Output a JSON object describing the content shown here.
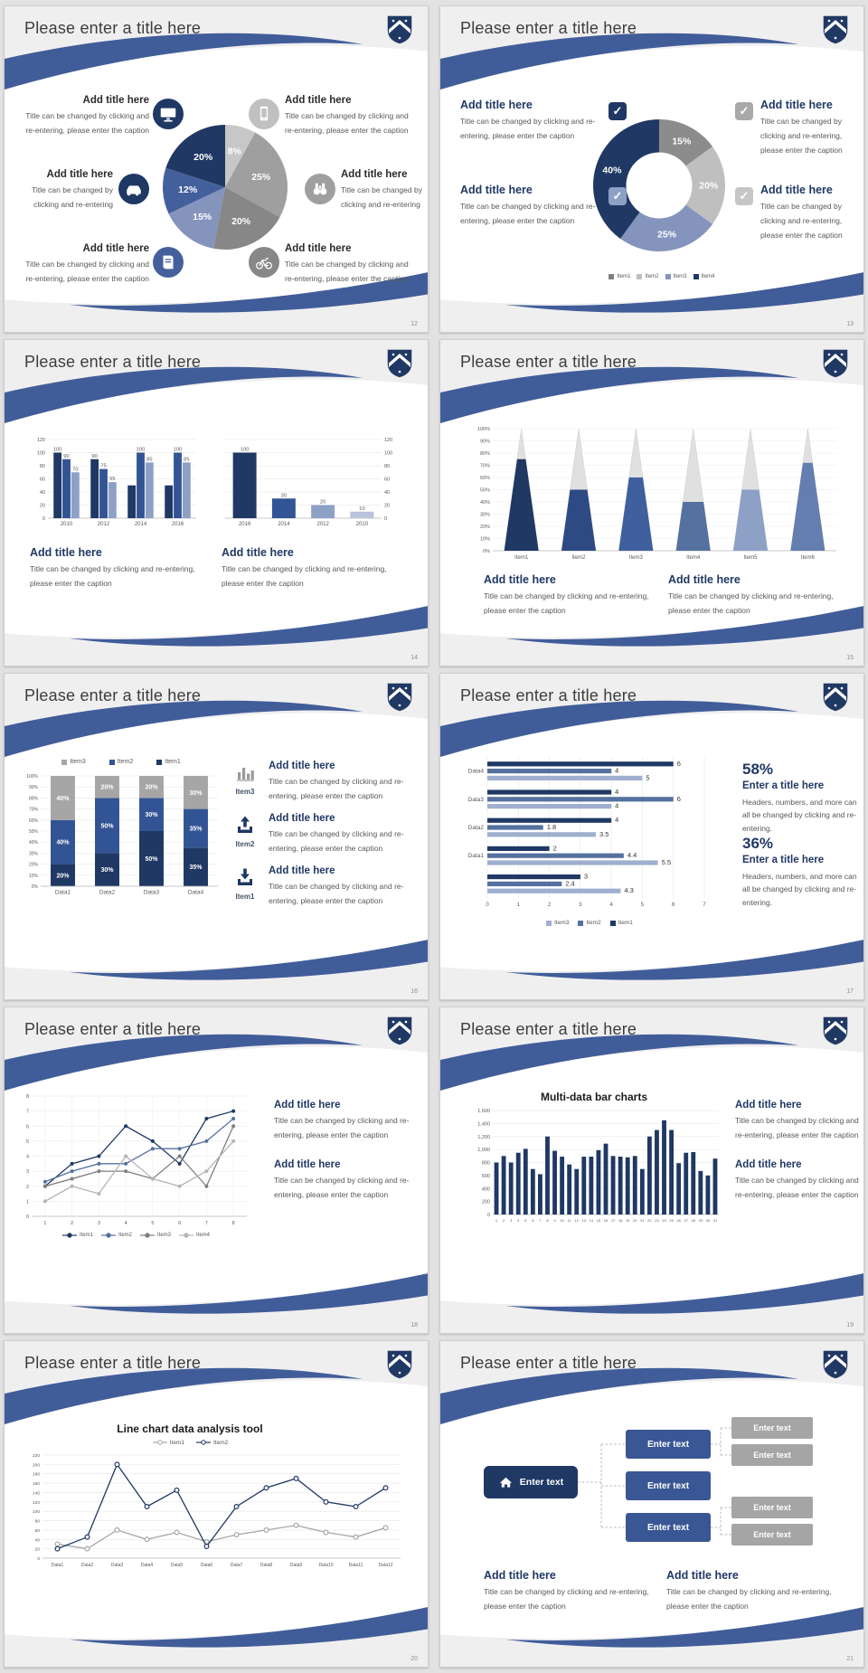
{
  "page": {
    "background": "#e2e2e2"
  },
  "theme": {
    "brand_navy": "#203864",
    "ribbon_blue": "#415d99",
    "header_gray": "#f0eff0"
  },
  "slides": [
    {
      "page_number": "12",
      "title": "Please enter a title here",
      "chart_data": {
        "type": "pie",
        "values": [
          8,
          25,
          20,
          15,
          12,
          20
        ],
        "labels": [
          "8%",
          "25%",
          "20%",
          "15%",
          "12%",
          "20%"
        ],
        "colors": [
          "#c7c7c7",
          "#9f9f9f",
          "#878787",
          "#8494bd",
          "#44609c",
          "#203864"
        ]
      },
      "blocks": [
        {
          "heading": "Add title here",
          "caption": "Title can be changed by clicking and re-entering, please enter the caption",
          "icon": "monitor-icon"
        },
        {
          "heading": "Add title here",
          "caption": "Title can be changed by clicking and re-entering, please enter the caption",
          "icon": "smartphone-icon"
        },
        {
          "heading": "Add title here",
          "caption": "Title can be changed by clicking and re-entering",
          "icon": "car-icon"
        },
        {
          "heading": "Add title here",
          "caption": "Title can be changed by clicking and re-entering",
          "icon": "binoculars-icon"
        },
        {
          "heading": "Add title here",
          "caption": "Title can be changed by clicking and re-entering, please enter the caption",
          "icon": "book-icon"
        },
        {
          "heading": "Add title here",
          "caption": "Title can be changed by clicking and re-entering, please enter the caption",
          "icon": "bicycle-icon"
        }
      ]
    },
    {
      "page_number": "13",
      "title": "Please enter a title here",
      "chart_data": {
        "type": "donut",
        "inner": 0.5,
        "values": [
          15,
          20,
          25,
          40
        ],
        "labels": [
          "15%",
          "20%",
          "25%",
          "40%"
        ],
        "colors": [
          "#8c8c8c",
          "#bfbfbf",
          "#8494bd",
          "#203864"
        ],
        "legend_style": "square",
        "legend": [
          {
            "label": "Item1",
            "color": "#7f7f7f"
          },
          {
            "label": "Item2",
            "color": "#bfbfbf"
          },
          {
            "label": "Item3",
            "color": "#8494bd"
          },
          {
            "label": "Item4",
            "color": "#203864"
          }
        ]
      },
      "blocks": [
        {
          "heading": "Add title here",
          "caption": "Title can be changed by clicking and re-entering, please enter the caption",
          "check_color": "#1f3864"
        },
        {
          "heading": "Add title here",
          "caption": "Title can be changed by clicking and re-entering, please enter the caption",
          "check_color": "#8da0c6"
        },
        {
          "heading": "Add title here",
          "caption": "Title can be changed by clicking and re-entering, please enter the caption",
          "check_color": "#a9a9a9"
        },
        {
          "heading": "Add title here",
          "caption": "Title can be changed by clicking and re-entering, please enter the caption",
          "check_color": "#c6c6c6"
        }
      ]
    },
    {
      "page_number": "14",
      "title": "Please enter a title here",
      "chart_data": [
        {
          "type": "bars",
          "axis": "left",
          "ylim": [
            0,
            120
          ],
          "ystep": 20,
          "categories": [
            "2010",
            "2012",
            "2014",
            "2016"
          ],
          "series": [
            {
              "color": "#1f3864",
              "values": [
                100,
                90,
                50,
                50
              ],
              "labels": [
                "100",
                "90",
                "",
                ""
              ]
            },
            {
              "color": "#335494",
              "values": [
                90,
                75,
                100,
                100
              ],
              "labels": [
                "90",
                "75",
                "100",
                "100"
              ]
            },
            {
              "color": "#8da0c6",
              "values": [
                70,
                55,
                85,
                85
              ],
              "labels": [
                "70",
                "55",
                "85",
                "85"
              ]
            }
          ]
        },
        {
          "type": "bars",
          "axis": "right",
          "ylim": [
            0,
            120
          ],
          "ystep": 20,
          "categories": [
            "2016",
            "2014",
            "2012",
            "2010"
          ],
          "series": [
            {
              "colors": [
                "#1f3864",
                "#335494",
                "#8da0c6",
                "#b9c3dc"
              ],
              "values": [
                100,
                30,
                20,
                10
              ],
              "labels": [
                "100",
                "30",
                "20",
                "10"
              ]
            }
          ]
        }
      ],
      "blocks": [
        {
          "heading": "Add title here",
          "caption": "Title can be changed by clicking and re-entering, please enter the caption"
        },
        {
          "heading": "Add title here",
          "caption": "Title can be changed by clicking and re-entering, please enter the caption"
        }
      ]
    },
    {
      "page_number": "15",
      "title": "Please enter a title here",
      "chart_data": {
        "type": "cone",
        "ylim": [
          0,
          100
        ],
        "ystep": 10,
        "categories": [
          "Item1",
          "Item2",
          "Item3",
          "Item4",
          "Item5",
          "Item6"
        ],
        "values": [
          75,
          50,
          60,
          40,
          50,
          72
        ],
        "colors": [
          "#1f3864",
          "#2d4a84",
          "#3f5f9e",
          "#54719f",
          "#8da0c6",
          "#647eb0"
        ]
      },
      "blocks": [
        {
          "heading": "Add title here",
          "caption": "Title can be changed by clicking and re-entering, please enter the caption"
        },
        {
          "heading": "Add title here",
          "caption": "Title can be changed by clicking and re-entering, please enter the caption"
        }
      ]
    },
    {
      "page_number": "16",
      "title": "Please enter a title here",
      "chart_data": {
        "type": "stacked",
        "ylim": [
          0,
          100
        ],
        "ystep": 10,
        "categories": [
          "Data1",
          "Data2",
          "Data3",
          "Data4"
        ],
        "series": [
          {
            "name": "Item1",
            "color": "#1f3864",
            "values": [
              20,
              30,
              50,
              35
            ]
          },
          {
            "name": "Item2",
            "color": "#335494",
            "values": [
              40,
              50,
              30,
              35
            ]
          },
          {
            "name": "Item3",
            "color": "#a6a6a6",
            "values": [
              40,
              20,
              20,
              30
            ]
          }
        ],
        "legend_style": "square",
        "legend": [
          {
            "label": "Item3",
            "color": "#a6a6a6"
          },
          {
            "label": "Item2",
            "color": "#335494"
          },
          {
            "label": "Item1",
            "color": "#1f3864"
          }
        ]
      },
      "rows": [
        {
          "item": "Item3",
          "icon": "bar-chart-icon",
          "heading": "Add title here",
          "caption": "Title can be changed by clicking and re-entering, please enter the caption"
        },
        {
          "item": "Item2",
          "icon": "upload-icon",
          "heading": "Add title here",
          "caption": "Title can be changed by clicking and re-entering, please enter the caption"
        },
        {
          "item": "Item1",
          "icon": "download-icon",
          "heading": "Add title here",
          "caption": "Title can be changed by clicking and re-entering, please enter the caption"
        }
      ]
    },
    {
      "page_number": "17",
      "title": "Please enter a title here",
      "chart_data": {
        "type": "hbar",
        "xlim": [
          0,
          7
        ],
        "xstep": 1,
        "colors": [
          "#1f3864",
          "#54719f",
          "#9fafd0"
        ],
        "groups": [
          {
            "label": "Data4",
            "values": [
              6,
              4,
              5
            ]
          },
          {
            "label": "Data3",
            "values": [
              4,
              6,
              4
            ]
          },
          {
            "label": "Data2",
            "values": [
              4,
              1.8,
              3.5
            ]
          },
          {
            "label": "Data1",
            "values": [
              2,
              4.4,
              5.5
            ]
          },
          {
            "label": "",
            "values": [
              3,
              2.4,
              4.3
            ]
          }
        ],
        "legend_style": "square",
        "legend": [
          {
            "label": "Item3",
            "color": "#9fafd0"
          },
          {
            "label": "Item2",
            "color": "#54719f"
          },
          {
            "label": "Item1",
            "color": "#1f3864"
          }
        ]
      },
      "stats": [
        {
          "percent": "58%",
          "title": "Enter a title here",
          "caption": "Headers, numbers, and more can all be changed by clicking and re-entering."
        },
        {
          "percent": "36%",
          "title": "Enter a title here",
          "caption": "Headers, numbers, and more can all be changed by clicking and re-entering."
        }
      ]
    },
    {
      "page_number": "18",
      "title": "Please enter a title here",
      "chart_data": {
        "type": "line",
        "ylim": [
          0,
          8
        ],
        "ystep": 1,
        "vgrid": true,
        "marker": "dot",
        "x": [
          "1",
          "2",
          "3",
          "4",
          "5",
          "6",
          "7",
          "8"
        ],
        "series": [
          {
            "name": "Item1",
            "color": "#1f3864",
            "values": [
              2,
              3.5,
              4,
              6,
              5,
              3.5,
              6.5,
              7
            ]
          },
          {
            "name": "Item2",
            "color": "#54719f",
            "values": [
              2.3,
              3,
              3.5,
              3.5,
              4.5,
              4.5,
              5,
              6.5
            ]
          },
          {
            "name": "Item3",
            "color": "#7f7f7f",
            "values": [
              2,
              2.5,
              3,
              3,
              2.5,
              4,
              2,
              6
            ]
          },
          {
            "name": "Item4",
            "color": "#b5b5b5",
            "values": [
              1,
              2,
              1.5,
              4,
              2.5,
              2,
              3,
              5
            ]
          }
        ],
        "legend_style": "line",
        "legend": [
          {
            "label": "Item1",
            "color": "#1f3864"
          },
          {
            "label": "Item2",
            "color": "#54719f"
          },
          {
            "label": "Item3",
            "color": "#7f7f7f"
          },
          {
            "label": "Item4",
            "color": "#b5b5b5"
          }
        ]
      },
      "blocks": [
        {
          "heading": "Add title here",
          "caption": "Title can be changed by clicking and re-entering, please enter the caption"
        },
        {
          "heading": "Add title here",
          "caption": "Title can be changed by clicking and re-entering, please enter the caption"
        }
      ]
    },
    {
      "page_number": "19",
      "title": "Please enter a title here",
      "chart_data": {
        "type": "bars",
        "axis": "left",
        "chart_title": "Multi-data bar charts",
        "ylim": [
          0,
          1600
        ],
        "ystep": 200,
        "ylabels": [
          "0",
          "200",
          "400",
          "600",
          "800",
          "1,000",
          "1,200",
          "1,400",
          "1,600"
        ],
        "xtick_size": 4,
        "categories": [
          "1",
          "2",
          "3",
          "4",
          "5",
          "6",
          "7",
          "8",
          "9",
          "10",
          "11",
          "12",
          "13",
          "14",
          "15",
          "16",
          "17",
          "18",
          "19",
          "20",
          "21",
          "22",
          "23",
          "24",
          "25",
          "26",
          "27",
          "28",
          "29",
          "30",
          "31"
        ],
        "series": [
          {
            "color": "#1f3864",
            "values": [
              800,
              900,
              800,
              950,
              1010,
              700,
              620,
              1200,
              980,
              890,
              770,
              700,
              890,
              890,
              990,
              1090,
              900,
              890,
              880,
              900,
              700,
              1200,
              1300,
              1450,
              1300,
              790,
              950,
              960,
              670,
              600,
              860
            ]
          }
        ]
      },
      "blocks": [
        {
          "heading": "Add title here",
          "caption": "Title can be changed by clicking and re-entering, please enter the caption"
        },
        {
          "heading": "Add title here",
          "caption": "Title can be changed by clicking and re-entering, please enter the caption"
        }
      ]
    },
    {
      "page_number": "20",
      "title": "Please enter a title here",
      "chart_data": {
        "type": "line",
        "chart_title": "Line chart data analysis tool",
        "ylim": [
          0,
          220
        ],
        "ystep": 20,
        "marker": "open",
        "xtick_size": 5,
        "ytick_size": 4.8,
        "x": [
          "Data1",
          "Data2",
          "Data3",
          "Data4",
          "Data5",
          "Data6",
          "Data7",
          "Data8",
          "Data9",
          "Data10",
          "Data11",
          "Data12"
        ],
        "series": [
          {
            "name": "Item1",
            "color": "#a6a6a6",
            "values": [
              30,
              20,
              60,
              40,
              55,
              35,
              50,
              60,
              70,
              55,
              45,
              65
            ]
          },
          {
            "name": "Item2",
            "color": "#1f3864",
            "values": [
              20,
              45,
              200,
              110,
              145,
              25,
              110,
              150,
              170,
              120,
              110,
              150
            ]
          }
        ],
        "legend_style": "line",
        "legend": [
          {
            "label": "Item1",
            "color": "#a6a6a6"
          },
          {
            "label": "Item2",
            "color": "#1f3864"
          }
        ]
      }
    },
    {
      "page_number": "21",
      "title": "Please enter a title here",
      "diagram": {
        "root": {
          "label": "Enter text",
          "icon": "home-icon"
        },
        "children": [
          {
            "label": "Enter text"
          },
          {
            "label": "Enter text"
          },
          {
            "label": "Enter text"
          }
        ],
        "leaves": [
          {
            "label": "Enter text"
          },
          {
            "label": "Enter text"
          },
          {
            "label": "Enter text"
          },
          {
            "label": "Enter text"
          }
        ]
      },
      "blocks": [
        {
          "heading": "Add title here",
          "caption": "Title can be changed by clicking and re-entering, please enter the caption"
        },
        {
          "heading": "Add title here",
          "caption": "Title can be changed by clicking and re-entering, please enter the caption"
        }
      ]
    }
  ]
}
